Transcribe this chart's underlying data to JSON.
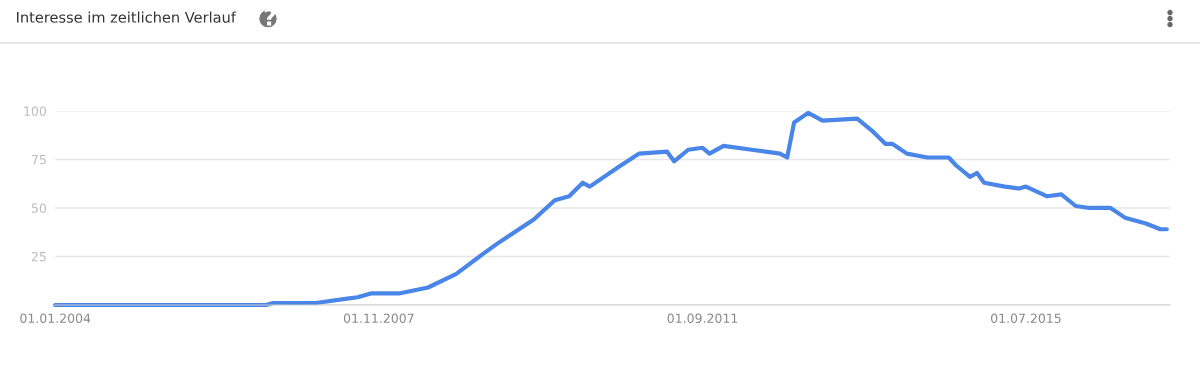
{
  "chart_data": {
    "type": "line",
    "title": "Interesse im zeitlichen Verlauf",
    "x": [
      "2004-01",
      "2006-07",
      "2006-08",
      "2007-02",
      "2007-06",
      "2007-08",
      "2007-10",
      "2008-02",
      "2008-06",
      "2008-10",
      "2009-02",
      "2009-04",
      "2009-09",
      "2009-12",
      "2010-02",
      "2010-04",
      "2010-05",
      "2010-09",
      "2010-12",
      "2011-04",
      "2011-05",
      "2011-07",
      "2011-09",
      "2011-10",
      "2011-12",
      "2012-04",
      "2012-08",
      "2012-09",
      "2012-10",
      "2012-12",
      "2013-02",
      "2013-07",
      "2013-09",
      "2013-11",
      "2013-12",
      "2014-02",
      "2014-05",
      "2014-08",
      "2014-09",
      "2014-11",
      "2014-12",
      "2015-01",
      "2015-04",
      "2015-06",
      "2015-07",
      "2015-10",
      "2015-12",
      "2016-02",
      "2016-04",
      "2016-07",
      "2016-09",
      "2016-12",
      "2017-02",
      "2017-03"
    ],
    "series": [
      {
        "color": "#4a86e8",
        "values": [
          0,
          0,
          1,
          1,
          3,
          4,
          6,
          6,
          9,
          16,
          27,
          32,
          44,
          54,
          56,
          63,
          61,
          71,
          78,
          79,
          74,
          80,
          81,
          78,
          82,
          80,
          78,
          76,
          94,
          99,
          95,
          96,
          90,
          83,
          83,
          78,
          76,
          76,
          72,
          66,
          68,
          63,
          61,
          60,
          61,
          56,
          57,
          51,
          50,
          50,
          45,
          42,
          39,
          39
        ]
      }
    ],
    "xlim": [
      "2004-01-01",
      "2017-03-15"
    ],
    "xticks": [
      {
        "value": "2004-01-01",
        "label": "01.01.2004"
      },
      {
        "value": "2007-11-01",
        "label": "01.11.2007"
      },
      {
        "value": "2011-09-01",
        "label": "01.09.2011"
      },
      {
        "value": "2015-07-01",
        "label": "01.07.2015"
      }
    ],
    "ylim": [
      0,
      100
    ],
    "yticks": [
      {
        "value": 0,
        "label": null
      },
      25,
      50,
      75,
      100
    ],
    "grid": "y",
    "legend": false,
    "marker": "none",
    "line_style": "solid"
  }
}
